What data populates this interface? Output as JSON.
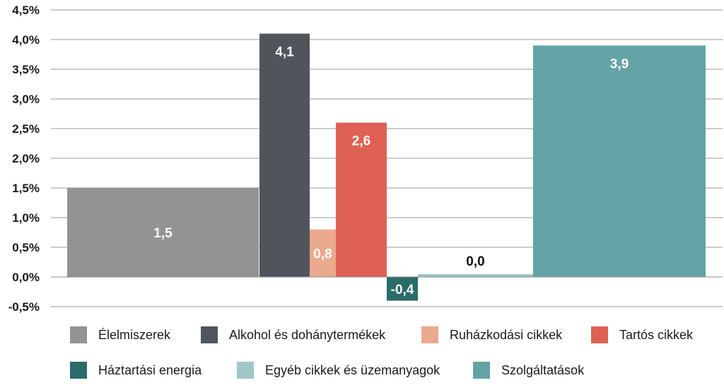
{
  "chart_data": {
    "type": "bar",
    "ylim": [
      -0.5,
      4.5
    ],
    "y_ticks": [
      "-0,5%",
      "0,0%",
      "0,5%",
      "1,0%",
      "1,5%",
      "2,0%",
      "2,5%",
      "3,0%",
      "3,5%",
      "4,0%",
      "4,5%"
    ],
    "grid": true,
    "legend_position": "bottom",
    "series": [
      {
        "name": "Élelmiszerek",
        "value": 1.5,
        "label": "1,5",
        "color": "#939393",
        "label_color": "#ffffff"
      },
      {
        "name": "Alkohol és dohánytermékek",
        "value": 4.1,
        "label": "4,1",
        "color": "#50555c",
        "label_color": "#ffffff"
      },
      {
        "name": "Ruházkodási cikkek",
        "value": 0.8,
        "label": "0,8",
        "color": "#eba98e",
        "label_color": "#ffffff"
      },
      {
        "name": "Tartós cikkek",
        "value": 2.6,
        "label": "2,6",
        "color": "#df6153",
        "label_color": "#ffffff"
      },
      {
        "name": "Háztartási energia",
        "value": -0.4,
        "label": "-0,4",
        "color": "#2a6c6a",
        "label_color": "#ffffff"
      },
      {
        "name": "Egyéb cikkek és üzemanyagok",
        "value": 0.0,
        "label": "0,0",
        "color": "#a0c7c7",
        "label_color": "#111111"
      },
      {
        "name": "Szolgáltatások",
        "value": 3.9,
        "label": "3,9",
        "color": "#64a3a5",
        "label_color": "#ffffff"
      }
    ]
  }
}
